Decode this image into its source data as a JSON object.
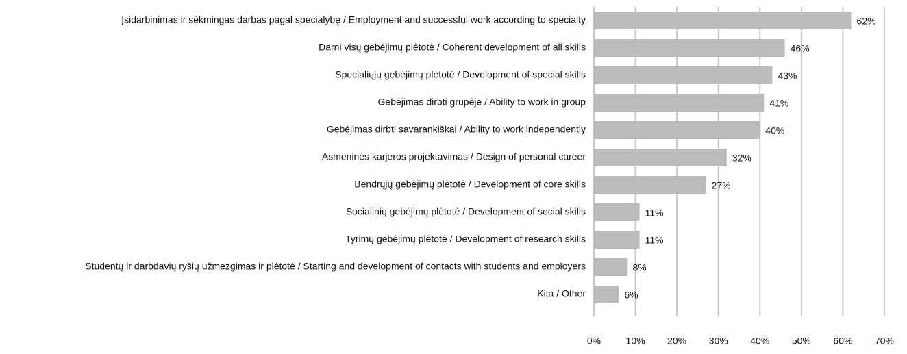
{
  "chart_data": {
    "type": "bar",
    "orientation": "horizontal",
    "categories": [
      "Įsidarbinimas ir sėkmingas darbas pagal specialybę / Employment and successful work according to specialty",
      "Darni visų gebėjimų plėtotė / Coherent development of all skills",
      "Specialiųjų gebėjimų plėtotė / Development of special skills",
      "Gebėjimas dirbti grupėje / Ability to work in group",
      "Gebėjimas dirbti savarankiškai / Ability to work independently",
      "Asmeninės karjeros projektavimas / Design of personal career",
      "Bendrųjų gebėjimų plėtotė / Development of core skills",
      "Socialinių gebėjimų plėtotė / Development of social skills",
      "Tyrimų gebėjimų plėtotė / Development of research skills",
      "Studentų ir darbdavių ryšių užmezgimas ir plėtotė / Starting and development of contacts with students and employers",
      "Kita / Other"
    ],
    "values": [
      62,
      46,
      43,
      41,
      40,
      32,
      27,
      11,
      11,
      8,
      6
    ],
    "value_labels": [
      "62%",
      "46%",
      "43%",
      "41%",
      "40%",
      "32%",
      "27%",
      "11%",
      "11%",
      "8%",
      "6%"
    ],
    "color": "#bcbcbe",
    "xlim": [
      0,
      70
    ],
    "xticks": [
      {
        "value": 0,
        "label": "0%"
      },
      {
        "value": 10,
        "label": "10%"
      },
      {
        "value": 20,
        "label": "20%"
      },
      {
        "value": 30,
        "label": "30%"
      },
      {
        "value": 40,
        "label": "40%"
      },
      {
        "value": 50,
        "label": "50%"
      },
      {
        "value": 60,
        "label": "60%"
      },
      {
        "value": 70,
        "label": "70%"
      }
    ],
    "grid": true
  }
}
